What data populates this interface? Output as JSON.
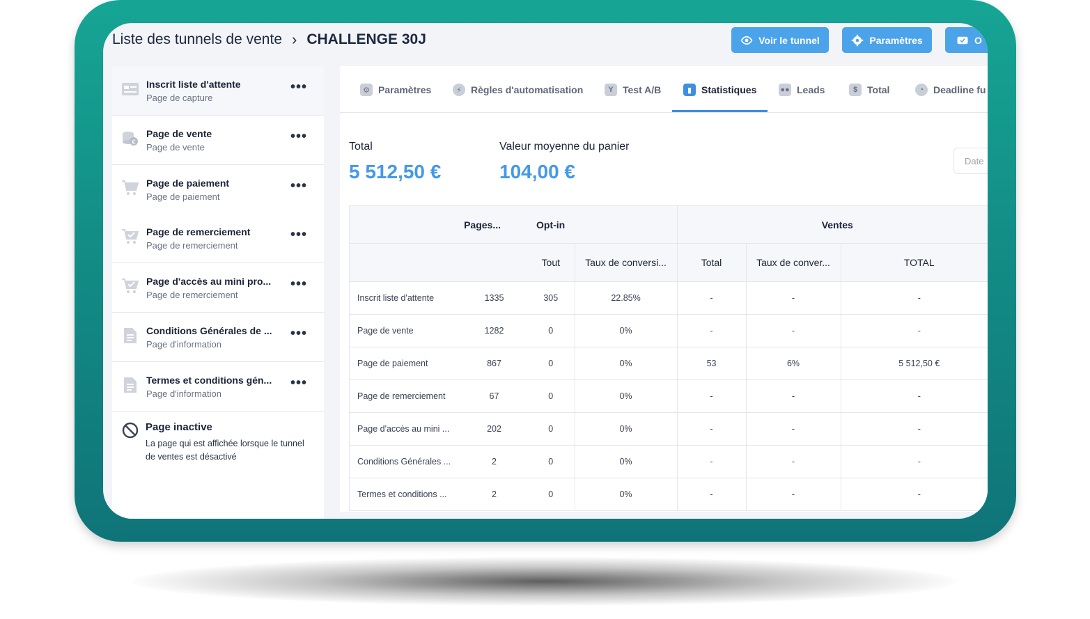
{
  "header": {
    "breadcrumb_root": "Liste des tunnels de vente",
    "breadcrumb_current": "CHALLENGE 30J",
    "buttons": [
      {
        "label": "Voir le tunnel",
        "icon": "eye-icon"
      },
      {
        "label": "Paramètres",
        "icon": "gear-icon"
      },
      {
        "label": "O",
        "icon": "ticket-icon"
      }
    ]
  },
  "sidebar": {
    "items": [
      {
        "title": "Inscrit liste d'attente",
        "subtitle": "Page de capture",
        "icon": "capture-page-icon"
      },
      {
        "title": "Page de vente",
        "subtitle": "Page de vente",
        "icon": "coins-icon"
      },
      {
        "title": "Page de paiement",
        "subtitle": "Page de paiement",
        "icon": "cart-icon"
      },
      {
        "title": "Page de remerciement",
        "subtitle": "Page de remerciement",
        "icon": "cart-check-icon"
      },
      {
        "title": "Page d'accès au mini pro...",
        "subtitle": "Page de remerciement",
        "icon": "cart-check-icon"
      },
      {
        "title": "Conditions Générales de ...",
        "subtitle": "Page d'information",
        "icon": "document-icon"
      },
      {
        "title": "Termes et conditions gén...",
        "subtitle": "Page d'information",
        "icon": "document-icon"
      }
    ],
    "more_label": "•••",
    "inactive": {
      "title": "Page inactive",
      "description": "La page qui est affichée lorsque le tunnel de ventes est désactivé",
      "icon": "prohibited-icon"
    }
  },
  "tabs": [
    {
      "label": "Paramètres",
      "icon": "sliders-icon",
      "glyph": "⚙"
    },
    {
      "label": "Règles d'automatisation",
      "icon": "bolt-icon",
      "glyph": "⚡"
    },
    {
      "label": "Test A/B",
      "icon": "split-icon",
      "glyph": "Y"
    },
    {
      "label": "Statistiques",
      "icon": "bar-chart-icon",
      "glyph": "▮"
    },
    {
      "label": "Leads",
      "icon": "users-icon",
      "glyph": "👥"
    },
    {
      "label": "Total",
      "icon": "dollar-icon",
      "glyph": "$"
    },
    {
      "label": "Deadline fu",
      "icon": "clock-icon",
      "glyph": "◔"
    }
  ],
  "active_tab": "Statistiques",
  "metrics": {
    "total_label": "Total",
    "total_value": "5 512,50 €",
    "avg_label": "Valeur moyenne du panier",
    "avg_value": "104,00 €"
  },
  "date_filter_placeholder": "Date",
  "table": {
    "group_headers": {
      "pages": "Pages...",
      "optin": "Opt-in",
      "ventes": "Ventes"
    },
    "sub_headers": {
      "tout": "Tout",
      "taux_optin": "Taux de conversi...",
      "total": "Total",
      "taux_ventes": "Taux de conver...",
      "total_caps": "TOTAL"
    },
    "rows": [
      {
        "name": "Inscrit liste d'attente",
        "pages": "1335",
        "tout": "305",
        "taux": "22.85%",
        "total": "-",
        "taux_v": "-",
        "total_eur": "-"
      },
      {
        "name": "Page de vente",
        "pages": "1282",
        "tout": "0",
        "taux": "0%",
        "total": "-",
        "taux_v": "-",
        "total_eur": "-"
      },
      {
        "name": "Page de paiement",
        "pages": "867",
        "tout": "0",
        "taux": "0%",
        "total": "53",
        "taux_v": "6%",
        "total_eur": "5 512,50 €"
      },
      {
        "name": "Page de remerciement",
        "pages": "67",
        "tout": "0",
        "taux": "0%",
        "total": "-",
        "taux_v": "-",
        "total_eur": "-"
      },
      {
        "name": "Page d'accès au mini ...",
        "pages": "202",
        "tout": "0",
        "taux": "0%",
        "total": "-",
        "taux_v": "-",
        "total_eur": "-"
      },
      {
        "name": "Conditions Générales ...",
        "pages": "2",
        "tout": "0",
        "taux": "0%",
        "total": "-",
        "taux_v": "-",
        "total_eur": "-"
      },
      {
        "name": "Termes et conditions ...",
        "pages": "2",
        "tout": "0",
        "taux": "0%",
        "total": "-",
        "taux_v": "-",
        "total_eur": "-"
      }
    ]
  },
  "colors": {
    "frame_teal": "#16a594",
    "accent_blue": "#4ba3ea",
    "metric_blue": "#4499e8",
    "text_dark": "#1b2438"
  }
}
